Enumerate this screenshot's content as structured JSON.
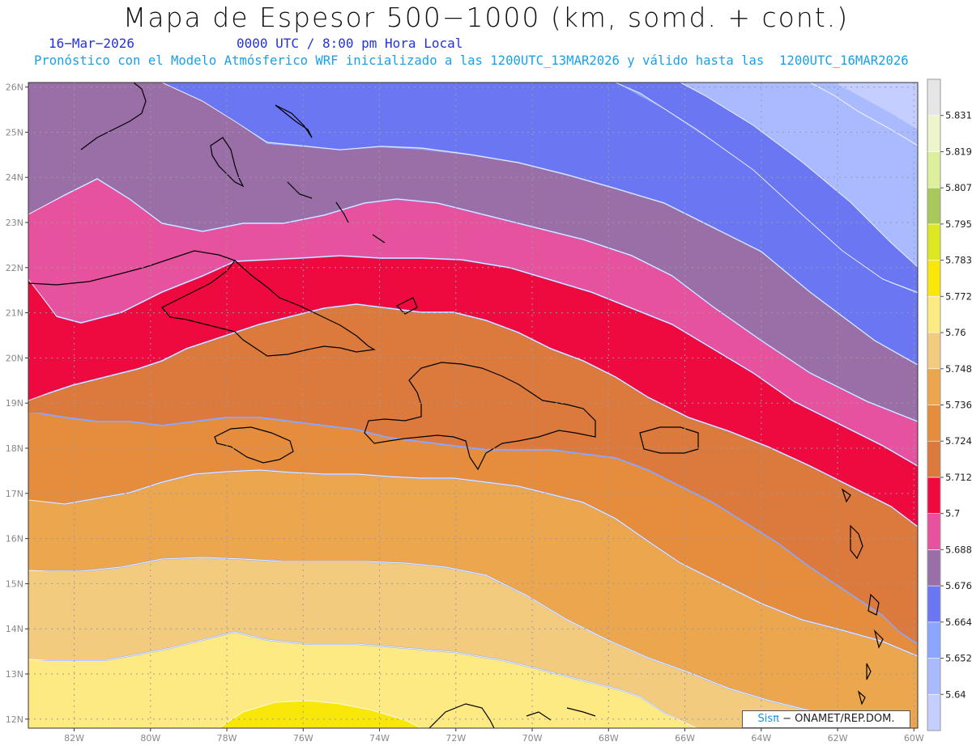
{
  "title": "Mapa de Espesor 500−1000 (km, somd. + cont.)",
  "date_text": "16−Mar−2026",
  "utc_text": "0000 UTC / 8:00 pm Hora Local",
  "forecast_text": "Pronóstico con el Modelo Atmósferico WRF inicializado a las 1200UTC_13MAR2026 y válido hasta las  1200UTC_16MAR2026",
  "credit": {
    "brand": "Sisπ",
    "text": " − ONAMET/REP.DOM."
  },
  "map": {
    "lon_range": [
      -83.2,
      -59.9
    ],
    "lat_range": [
      11.8,
      26.1
    ],
    "lat_ticks": [
      "12N",
      "13N",
      "14N",
      "15N",
      "16N",
      "17N",
      "18N",
      "19N",
      "20N",
      "21N",
      "22N",
      "23N",
      "24N",
      "25N",
      "26N"
    ],
    "lon_ticks": [
      "82W",
      "80W",
      "78W",
      "76W",
      "74W",
      "72W",
      "70W",
      "68W",
      "66W",
      "64W",
      "62W",
      "60W"
    ]
  },
  "legend": {
    "levels": [
      "5.64",
      "5.652",
      "5.664",
      "5.676",
      "5.688",
      "5.7",
      "5.712",
      "5.724",
      "5.736",
      "5.748",
      "5.76",
      "5.772",
      "5.783",
      "5.795",
      "5.807",
      "5.819",
      "5.831"
    ],
    "colors": [
      "#c4ceff",
      "#aabaff",
      "#8ca6ff",
      "#6a76f2",
      "#9a6ea6",
      "#e6529e",
      "#ee0a3e",
      "#db7a3c",
      "#e58c3d",
      "#eba64e",
      "#f2cb7e",
      "#feea82",
      "#f8e708",
      "#dce822",
      "#a8c85c",
      "#dcf09c",
      "#eef4cc",
      "#e6e6e6"
    ]
  }
}
